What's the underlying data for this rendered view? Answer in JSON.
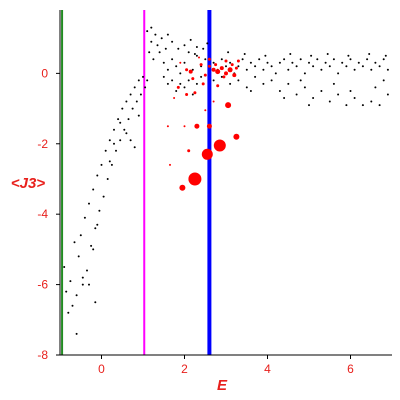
{
  "chart_data": {
    "type": "scatter",
    "xlabel": "E",
    "ylabel": "<J3>",
    "xlim": [
      -1,
      7
    ],
    "ylim": [
      -8,
      1.8
    ],
    "x_ticks": [
      0,
      2,
      4,
      6
    ],
    "y_ticks": [
      0,
      -2,
      -4,
      -6,
      -8
    ],
    "grid": false,
    "colors": {
      "axis": "#e8201c",
      "axis_labels": "#e8201c",
      "points": "#000000",
      "highlight": "#ff0000"
    },
    "vlines": [
      {
        "x": -0.95,
        "color": "#228b22"
      },
      {
        "x": 1.03,
        "color": "#ff00ff"
      },
      {
        "x": 2.6,
        "color": "#0000ff"
      }
    ],
    "series": [
      {
        "marker": "small-dot",
        "color": "#000000",
        "points": [
          [
            -0.9,
            -5.5
          ],
          [
            -0.85,
            -6.2
          ],
          [
            -0.8,
            -6.8
          ],
          [
            -0.75,
            -5.9
          ],
          [
            -0.7,
            -6.6
          ],
          [
            -0.65,
            -4.8
          ],
          [
            -0.6,
            -7.4
          ],
          [
            -0.55,
            -5.2
          ],
          [
            -0.5,
            -4.6
          ],
          [
            -0.45,
            -6.0
          ],
          [
            -0.4,
            -4.1
          ],
          [
            -0.35,
            -5.6
          ],
          [
            -0.3,
            -3.7
          ],
          [
            -0.25,
            -4.9
          ],
          [
            -0.2,
            -3.3
          ],
          [
            -0.15,
            -4.4
          ],
          [
            -0.1,
            -2.9
          ],
          [
            -0.05,
            -3.9
          ],
          [
            0.0,
            -2.6
          ],
          [
            0.05,
            -3.5
          ],
          [
            -0.15,
            -6.5
          ],
          [
            -0.3,
            -6.0
          ],
          [
            -0.6,
            -6.3
          ],
          [
            -0.45,
            -5.8
          ],
          [
            -0.2,
            -5.0
          ],
          [
            -0.1,
            -4.3
          ],
          [
            0.1,
            -2.2
          ],
          [
            0.15,
            -3.0
          ],
          [
            0.2,
            -1.9
          ],
          [
            0.25,
            -2.6
          ],
          [
            0.3,
            -1.6
          ],
          [
            0.35,
            -2.2
          ],
          [
            0.4,
            -1.3
          ],
          [
            0.45,
            -1.9
          ],
          [
            0.5,
            -1.0
          ],
          [
            0.55,
            -1.6
          ],
          [
            0.6,
            -0.8
          ],
          [
            0.65,
            -1.3
          ],
          [
            0.7,
            -0.6
          ],
          [
            0.75,
            -1.0
          ],
          [
            0.8,
            -0.4
          ],
          [
            0.85,
            -0.8
          ],
          [
            0.9,
            -0.2
          ],
          [
            0.95,
            -0.6
          ],
          [
            1.0,
            -0.1
          ],
          [
            1.05,
            -0.4
          ],
          [
            0.2,
            -2.5
          ],
          [
            0.3,
            -2.0
          ],
          [
            0.45,
            -1.4
          ],
          [
            0.6,
            -1.7
          ],
          [
            0.7,
            -1.9
          ],
          [
            0.8,
            -2.1
          ],
          [
            0.9,
            -1.2
          ],
          [
            1.1,
            1.2
          ],
          [
            1.2,
            1.3
          ],
          [
            1.3,
            1.1
          ],
          [
            1.2,
            0.9
          ],
          [
            1.35,
            0.8
          ],
          [
            1.15,
            0.6
          ],
          [
            1.25,
            0.4
          ],
          [
            1.4,
            0.6
          ],
          [
            1.5,
            0.3
          ],
          [
            1.1,
            -0.2
          ],
          [
            1.6,
            0.1
          ],
          [
            1.7,
            0.4
          ],
          [
            1.8,
            0.2
          ],
          [
            1.9,
            0.0
          ],
          [
            2.0,
            0.3
          ],
          [
            2.1,
            0.6
          ],
          [
            2.2,
            0.1
          ],
          [
            2.3,
            0.5
          ],
          [
            2.4,
            0.2
          ],
          [
            2.5,
            0.4
          ],
          [
            1.5,
            -0.1
          ],
          [
            1.6,
            -0.3
          ],
          [
            1.7,
            -0.2
          ],
          [
            1.8,
            -0.5
          ],
          [
            1.9,
            -0.3
          ],
          [
            2.0,
            -0.4
          ],
          [
            2.1,
            -0.2
          ],
          [
            2.2,
            -0.6
          ],
          [
            2.3,
            -0.3
          ],
          [
            2.4,
            -0.1
          ],
          [
            1.7,
            0.9
          ],
          [
            1.85,
            0.7
          ],
          [
            2.0,
            0.8
          ],
          [
            2.15,
            0.95
          ],
          [
            2.3,
            0.75
          ],
          [
            1.55,
            0.7
          ],
          [
            2.6,
            0.2
          ],
          [
            2.7,
            0.3
          ],
          [
            2.8,
            0.1
          ],
          [
            2.9,
            0.4
          ],
          [
            3.0,
            0.2
          ],
          [
            3.1,
            0.3
          ],
          [
            3.2,
            0.0
          ],
          [
            3.3,
            0.2
          ],
          [
            3.4,
            0.4
          ],
          [
            3.5,
            0.1
          ],
          [
            3.6,
            0.3
          ],
          [
            3.7,
            0.2
          ],
          [
            3.8,
            0.4
          ],
          [
            3.9,
            0.1
          ],
          [
            4.0,
            0.3
          ],
          [
            4.1,
            0.2
          ],
          [
            4.2,
            0.0
          ],
          [
            4.3,
            0.3
          ],
          [
            4.4,
            0.4
          ],
          [
            4.5,
            0.1
          ],
          [
            4.6,
            0.3
          ],
          [
            4.7,
            0.2
          ],
          [
            4.8,
            0.4
          ],
          [
            4.9,
            0.0
          ],
          [
            5.0,
            0.3
          ],
          [
            5.1,
            0.2
          ],
          [
            5.2,
            0.4
          ],
          [
            5.3,
            0.1
          ],
          [
            5.4,
            0.3
          ],
          [
            5.5,
            0.2
          ],
          [
            5.6,
            0.4
          ],
          [
            5.7,
            0.0
          ],
          [
            5.8,
            0.3
          ],
          [
            5.9,
            0.2
          ],
          [
            6.0,
            0.4
          ],
          [
            6.1,
            0.1
          ],
          [
            6.2,
            0.3
          ],
          [
            6.3,
            0.2
          ],
          [
            6.4,
            0.4
          ],
          [
            6.5,
            0.1
          ],
          [
            6.6,
            0.3
          ],
          [
            6.7,
            0.2
          ],
          [
            6.8,
            0.4
          ],
          [
            6.9,
            0.1
          ],
          [
            2.7,
            -0.2
          ],
          [
            2.9,
            -0.1
          ],
          [
            3.1,
            -0.3
          ],
          [
            3.3,
            -0.2
          ],
          [
            3.5,
            -0.4
          ],
          [
            3.7,
            -0.1
          ],
          [
            3.9,
            -0.3
          ],
          [
            4.1,
            -0.2
          ],
          [
            4.3,
            -0.5
          ],
          [
            4.5,
            -0.3
          ],
          [
            4.7,
            -0.6
          ],
          [
            4.9,
            -0.4
          ],
          [
            5.1,
            -0.7
          ],
          [
            5.3,
            -0.5
          ],
          [
            5.5,
            -0.8
          ],
          [
            5.7,
            -0.6
          ],
          [
            5.9,
            -0.9
          ],
          [
            6.1,
            -0.7
          ],
          [
            6.3,
            -0.9
          ],
          [
            6.5,
            -0.8
          ],
          [
            6.7,
            -0.9
          ],
          [
            6.9,
            -0.6
          ],
          [
            5.0,
            -0.9
          ],
          [
            4.4,
            -0.7
          ],
          [
            6.0,
            -0.5
          ],
          [
            6.6,
            -0.4
          ],
          [
            3.6,
            -0.5
          ],
          [
            4.8,
            -0.2
          ],
          [
            5.6,
            -0.3
          ],
          [
            6.8,
            -0.2
          ],
          [
            1.6,
            1.1
          ],
          [
            1.45,
            1.0
          ],
          [
            2.25,
            0.55
          ],
          [
            2.45,
            0.7
          ],
          [
            2.55,
            0.85
          ],
          [
            3.05,
            0.6
          ],
          [
            3.45,
            0.55
          ],
          [
            3.95,
            0.5
          ],
          [
            4.55,
            0.55
          ],
          [
            5.05,
            0.5
          ],
          [
            5.45,
            0.55
          ],
          [
            5.95,
            0.5
          ],
          [
            6.45,
            0.55
          ],
          [
            6.85,
            0.5
          ]
        ]
      },
      {
        "marker": "red-dot",
        "color": "#ff0000",
        "points": [
          [
            2.25,
            -3.0,
            13
          ],
          [
            2.85,
            -2.05,
            12
          ],
          [
            2.55,
            -2.3,
            11
          ],
          [
            3.05,
            -0.9,
            6
          ],
          [
            2.6,
            -1.5,
            5
          ],
          [
            2.3,
            -1.5,
            5
          ],
          [
            3.25,
            -1.8,
            6
          ],
          [
            1.95,
            -3.25,
            6
          ],
          [
            2.7,
            0.1,
            4
          ],
          [
            2.8,
            0.05,
            5
          ],
          [
            2.9,
            0.15,
            4
          ],
          [
            3.0,
            0.0,
            4
          ],
          [
            3.1,
            0.1,
            5
          ],
          [
            3.2,
            -0.05,
            4
          ],
          [
            3.25,
            0.15,
            3
          ],
          [
            2.6,
            0.2,
            3
          ],
          [
            2.5,
            -0.05,
            3
          ],
          [
            2.15,
            0.05,
            4
          ],
          [
            2.05,
            0.1,
            3
          ],
          [
            2.2,
            -0.15,
            3
          ],
          [
            2.4,
            0.25,
            3
          ],
          [
            2.95,
            -0.1,
            3
          ],
          [
            3.15,
            0.25,
            3
          ],
          [
            2.45,
            -0.3,
            3
          ],
          [
            2.05,
            -0.6,
            3
          ],
          [
            2.25,
            -0.55,
            3
          ],
          [
            2.8,
            -0.35,
            3
          ],
          [
            1.85,
            -0.4,
            3
          ],
          [
            1.75,
            -0.7,
            2
          ],
          [
            1.6,
            -1.5,
            2
          ],
          [
            1.65,
            -2.6,
            2
          ],
          [
            2.1,
            -2.2,
            3
          ],
          [
            2.6,
            0.4,
            3
          ],
          [
            3.3,
            0.35,
            3
          ],
          [
            2.35,
            0.45,
            2
          ],
          [
            2.7,
            -0.8,
            2
          ],
          [
            2.5,
            -1.05,
            2
          ],
          [
            1.9,
            0.3,
            2
          ],
          [
            2.0,
            -1.5,
            2
          ],
          [
            3.0,
            0.35,
            3
          ],
          [
            2.75,
            0.25,
            3
          ]
        ]
      }
    ]
  }
}
